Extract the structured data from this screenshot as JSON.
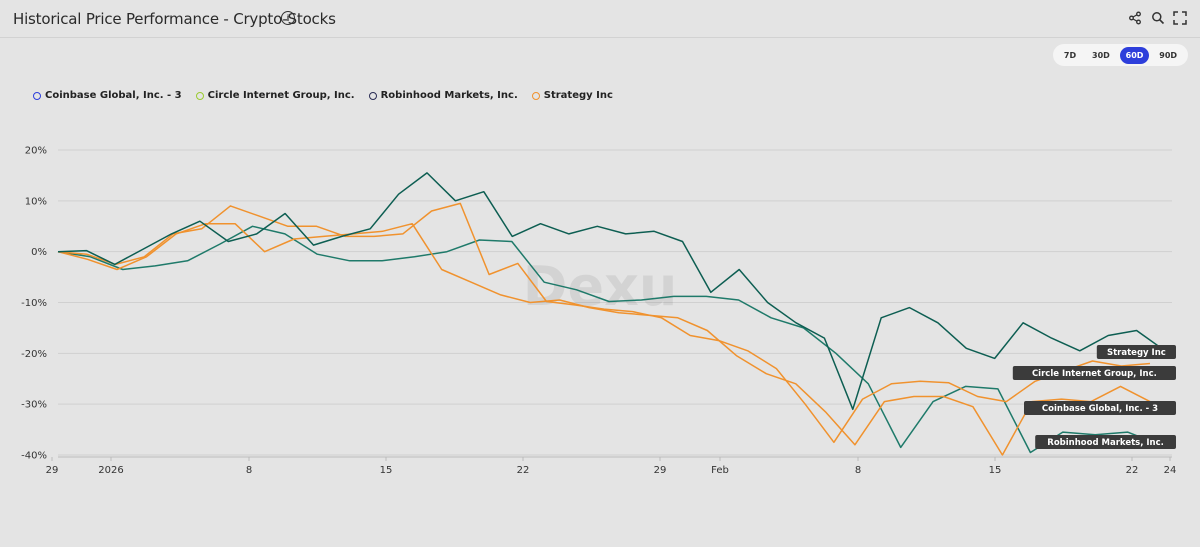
{
  "header": {
    "title": "Historical Price Performance - Crypto-Stocks",
    "info_icon": "info-icon",
    "icons": [
      "share-icon",
      "search-icon",
      "fullscreen-icon"
    ]
  },
  "range_buttons": [
    {
      "label": "7D",
      "active": false
    },
    {
      "label": "30D",
      "active": false
    },
    {
      "label": "60D",
      "active": true
    },
    {
      "label": "90D",
      "active": false
    }
  ],
  "watermark": "Dexu",
  "chart_data": {
    "type": "line",
    "x_ticks": [
      "29",
      "2026",
      "8",
      "15",
      "22",
      "29",
      "Feb",
      "8",
      "15",
      "22",
      "24"
    ],
    "y_ticks": [
      "20%",
      "10%",
      "0%",
      "-10%",
      "-20%",
      "-30%",
      "-40%"
    ],
    "ylim": [
      -40,
      20
    ],
    "legend_position": "top-left",
    "series": [
      {
        "name": "Coinbase Global, Inc. - 3",
        "legend_color": "#2d3edb",
        "line_color": "#1f7a6a",
        "end_label": "Coinbase Global, Inc. - 3",
        "values": [
          0,
          -1,
          -3.5,
          -2.8,
          -1.8,
          1.5,
          5,
          3.5,
          -0.5,
          -1.8,
          -1.8,
          -1,
          0,
          2.3,
          2,
          -6,
          -7.5,
          -9.8,
          -9.5,
          -8.8,
          -8.8,
          -9.5,
          -13,
          -15,
          -20,
          -26,
          -38.5,
          -29.5,
          -26.5,
          -27,
          -39.5,
          -35.5,
          -36,
          -35.5,
          -38
        ]
      },
      {
        "name": "Circle Internet Group, Inc.",
        "legend_color": "#9acb30",
        "line_color": "#f0922e",
        "end_label": "Circle Internet Group, Inc.",
        "values": [
          0,
          -0.5,
          -2.5,
          -1,
          3.5,
          4.5,
          9,
          7,
          5,
          5,
          3,
          3,
          3.5,
          8,
          9.5,
          -4.5,
          -2.3,
          -9.8,
          -10.5,
          -11.3,
          -11.8,
          -13,
          -16.5,
          -17.5,
          -19.5,
          -23,
          -30,
          -37.5,
          -29,
          -26,
          -25.5,
          -25.8,
          -28.5,
          -29.5,
          -25.5,
          -23.5,
          -21.5,
          -22.5,
          -22
        ]
      },
      {
        "name": "Robinhood Markets, Inc.",
        "legend_color": "#2a2d55",
        "line_color": "#0d5e52",
        "end_label": "Robinhood Markets, Inc.",
        "values": [
          0,
          0.2,
          -2.5,
          0.5,
          3.5,
          6,
          2,
          3.5,
          7.5,
          1.3,
          3,
          4.5,
          11.3,
          15.5,
          10,
          11.8,
          3,
          5.5,
          3.5,
          5,
          3.5,
          4,
          2,
          -8,
          -3.5,
          -10,
          -14,
          -17,
          -31,
          -13,
          -11,
          -14,
          -19,
          -21,
          -14,
          -17,
          -19.5,
          -16.5,
          -15.5,
          -19.5
        ]
      },
      {
        "name": "Strategy Inc",
        "legend_color": "#f0922e",
        "line_color": "#f0922e",
        "end_label": "Strategy Inc",
        "values": [
          0,
          -1.5,
          -3.5,
          -1,
          3.5,
          5.5,
          5.5,
          0,
          2.5,
          3,
          3.5,
          4,
          5.5,
          -3.5,
          -6,
          -8.5,
          -10,
          -9.5,
          -11,
          -12,
          -12.5,
          -13,
          -15.5,
          -20.5,
          -24,
          -26,
          -31.5,
          -38,
          -29.5,
          -28.5,
          -28.5,
          -30.5,
          -40,
          -29.5,
          -29,
          -29.5,
          -26.5,
          -29.5
        ]
      }
    ]
  }
}
